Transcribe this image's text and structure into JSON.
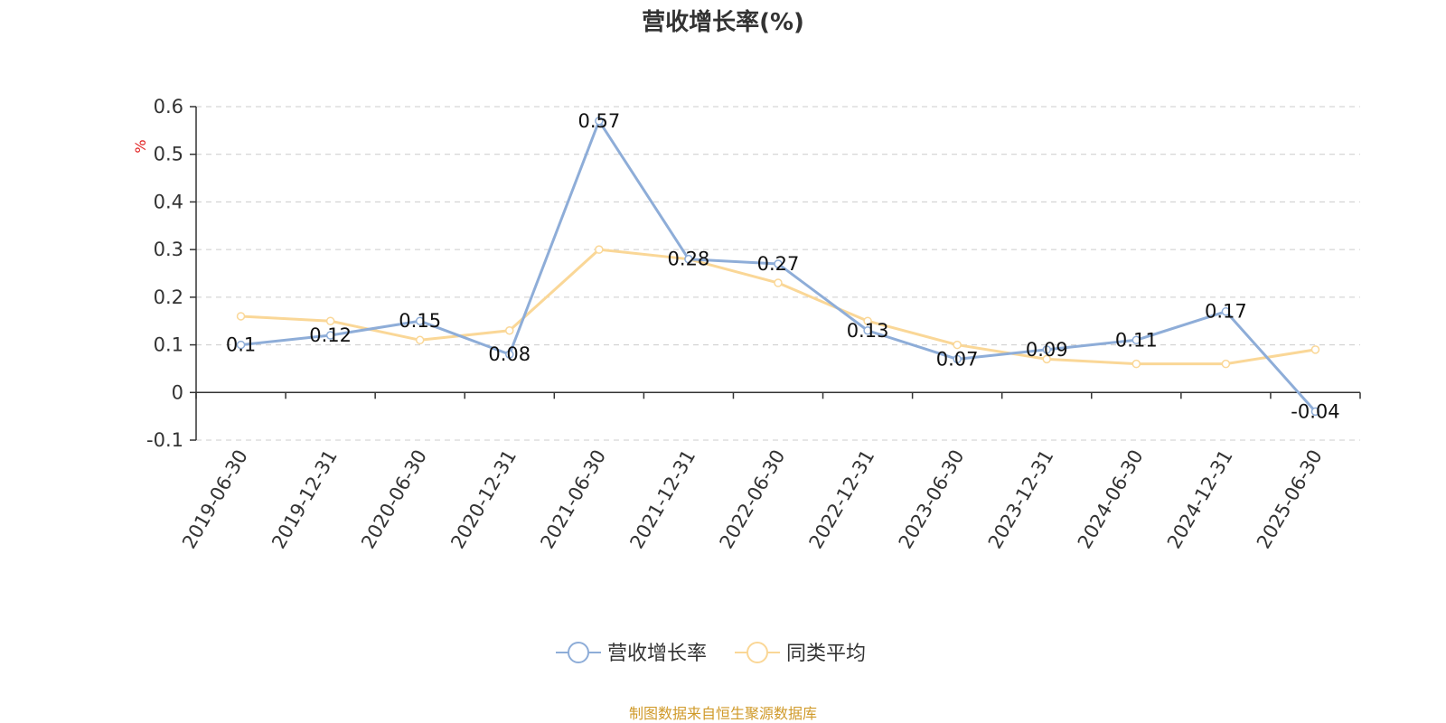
{
  "chart_data": {
    "type": "line",
    "title": "营收增长率(%)",
    "ylabel": "%",
    "ylim": [
      -0.1,
      0.6
    ],
    "yticks": [
      -0.1,
      0,
      0.1,
      0.2,
      0.3,
      0.4,
      0.5,
      0.6
    ],
    "grid": true,
    "legend_position": "bottom-center",
    "categories": [
      "2019-06-30",
      "2019-12-31",
      "2020-06-30",
      "2020-12-31",
      "2021-06-30",
      "2021-12-31",
      "2022-06-30",
      "2022-12-31",
      "2023-06-30",
      "2023-12-31",
      "2024-06-30",
      "2024-12-31",
      "2025-06-30"
    ],
    "series": [
      {
        "name": "营收增长率",
        "color": "#8eadd8",
        "values": [
          0.1,
          0.12,
          0.15,
          0.08,
          0.57,
          0.28,
          0.27,
          0.13,
          0.07,
          0.09,
          0.11,
          0.17,
          -0.04
        ],
        "labels": [
          "0.1",
          "0.12",
          "0.15",
          "0.08",
          "0.57",
          "0.28",
          "0.27",
          "0.13",
          "0.07",
          "0.09",
          "0.11",
          "0.17",
          "-0.04"
        ]
      },
      {
        "name": "同类平均",
        "color": "#fad797",
        "values": [
          0.16,
          0.15,
          0.11,
          0.13,
          0.3,
          0.28,
          0.23,
          0.15,
          0.1,
          0.07,
          0.06,
          0.06,
          0.09
        ]
      }
    ],
    "source": "制图数据来自恒生聚源数据库"
  },
  "colors": {
    "unit_label": "#e02020",
    "source_text": "#d09a2a",
    "axis": "#333333",
    "grid": "#cccccc"
  }
}
